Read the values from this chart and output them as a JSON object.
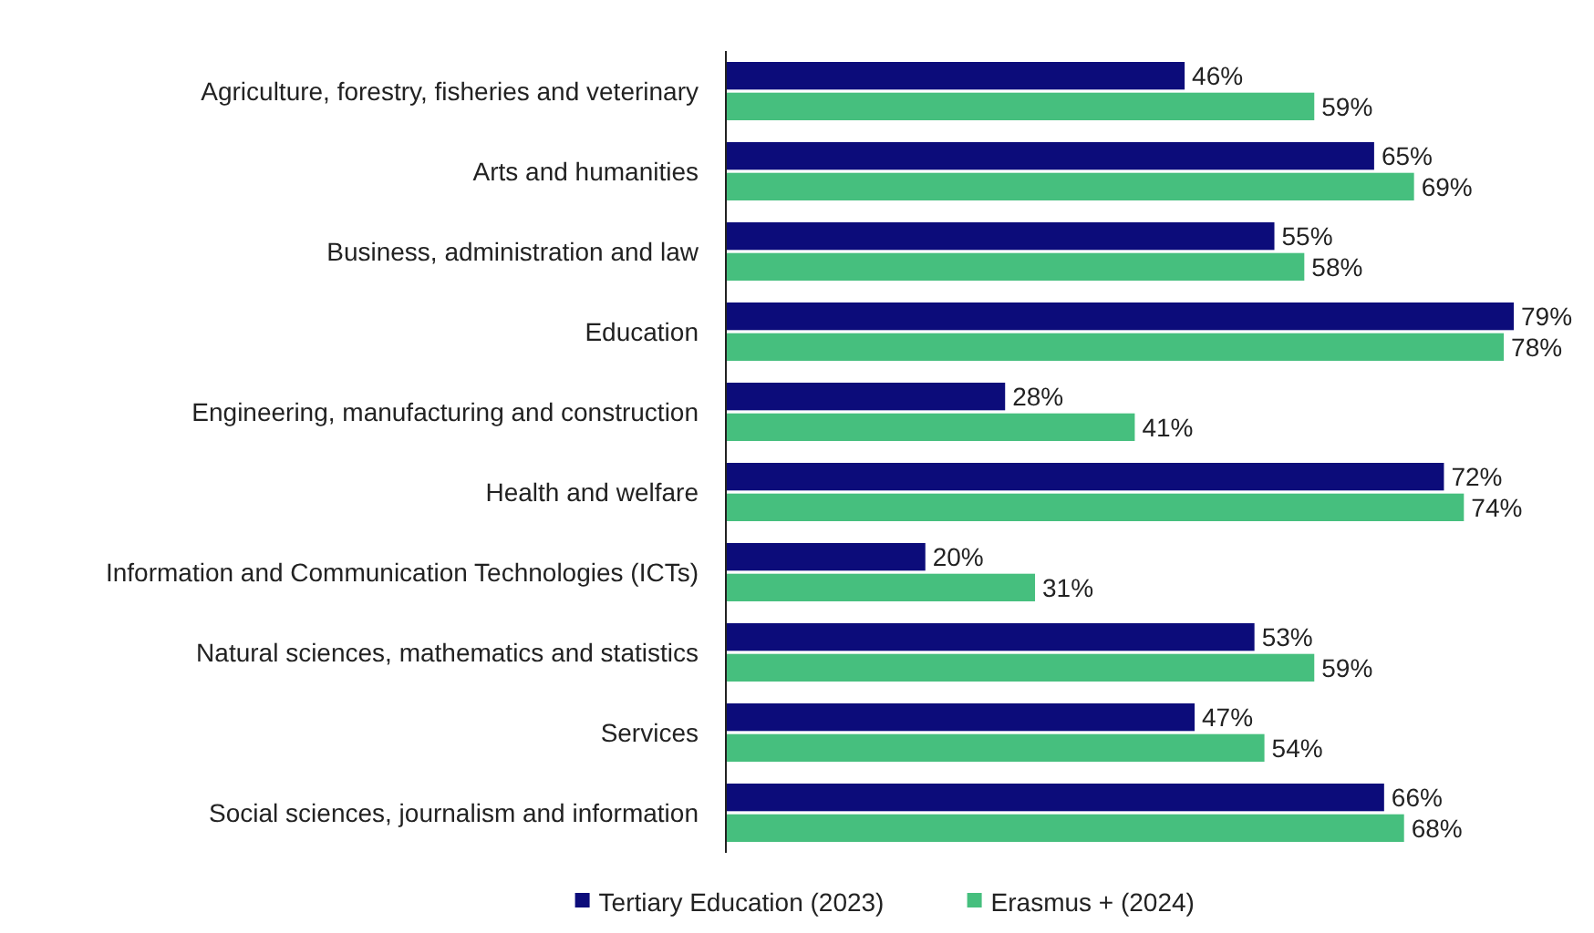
{
  "chart_data": {
    "type": "bar",
    "orientation": "horizontal",
    "categories": [
      "Agriculture, forestry, fisheries and veterinary",
      "Arts and humanities",
      "Business, administration and law",
      "Education",
      "Engineering, manufacturing and construction",
      "Health and welfare",
      "Information and Communication Technologies (ICTs)",
      "Natural sciences, mathematics and statistics",
      "Services",
      "Social sciences, journalism and information"
    ],
    "series": [
      {
        "name": "Tertiary Education (2023)",
        "color": "#0c0c7a",
        "values": [
          46,
          65,
          55,
          79,
          28,
          72,
          20,
          53,
          47,
          66
        ],
        "value_labels": [
          "46%",
          "65%",
          "55%",
          "79%",
          "28%",
          "72%",
          "20%",
          "53%",
          "47%",
          "66%"
        ]
      },
      {
        "name": "Erasmus + (2024)",
        "color": "#46bf7e",
        "values": [
          59,
          69,
          58,
          78,
          41,
          74,
          31,
          59,
          54,
          68
        ],
        "value_labels": [
          "59%",
          "69%",
          "58%",
          "78%",
          "41%",
          "74%",
          "31%",
          "59%",
          "54%",
          "68%"
        ]
      }
    ],
    "legend": "bottom"
  }
}
